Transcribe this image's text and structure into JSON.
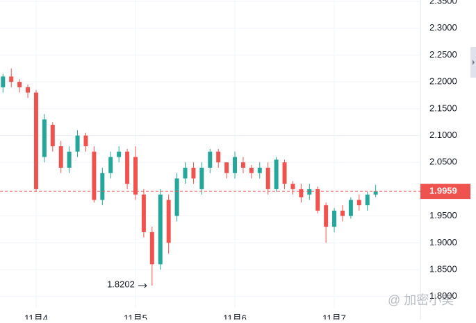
{
  "chart_data": {
    "type": "candlestick",
    "x": [
      -8,
      -6,
      -4,
      -2,
      0,
      2,
      4,
      6,
      8,
      10,
      12,
      14,
      16,
      18,
      20,
      22,
      24,
      26,
      28,
      30,
      32,
      34,
      36,
      38,
      40,
      42,
      44,
      46,
      48,
      50,
      52,
      54,
      56,
      58,
      60,
      62,
      64,
      66,
      68,
      70,
      72,
      74,
      76,
      78,
      80,
      82
    ],
    "open": [
      2.19,
      2.21,
      2.2,
      2.19,
      2.18,
      2.06,
      2.12,
      2.08,
      2.04,
      2.07,
      2.1,
      2.07,
      1.98,
      2.03,
      2.06,
      2.07,
      2.06,
      1.99,
      1.92,
      1.86,
      1.98,
      1.95,
      2.02,
      2.04,
      2.0,
      2.04,
      2.07,
      2.05,
      2.03,
      2.05,
      2.04,
      2.03,
      2.04,
      2.0,
      2.05,
      2.01,
      2.0,
      1.99,
      2.0,
      1.97,
      1.93,
      1.96,
      1.95,
      1.98,
      1.97,
      1.99
    ],
    "high": [
      2.215,
      2.225,
      2.205,
      2.195,
      2.185,
      2.14,
      2.125,
      2.09,
      2.08,
      2.11,
      2.105,
      2.08,
      2.04,
      2.07,
      2.08,
      2.075,
      2.08,
      2.0,
      1.93,
      2.0,
      1.99,
      2.03,
      2.05,
      2.05,
      2.05,
      2.075,
      2.075,
      2.05,
      2.07,
      2.06,
      2.045,
      2.05,
      2.05,
      2.06,
      2.055,
      2.015,
      2.01,
      2.01,
      2.005,
      1.975,
      1.965,
      1.97,
      1.985,
      1.99,
      1.995,
      2.008
    ],
    "low": [
      2.18,
      2.19,
      2.18,
      2.17,
      1.995,
      2.05,
      2.07,
      2.03,
      2.03,
      2.06,
      2.07,
      1.975,
      1.97,
      2.02,
      2.05,
      2.0,
      1.98,
      1.91,
      1.8202,
      1.85,
      1.88,
      1.94,
      2.01,
      2.01,
      1.99,
      2.03,
      2.04,
      2.02,
      2.02,
      2.03,
      2.02,
      2.02,
      1.99,
      1.995,
      2.0,
      1.99,
      1.975,
      1.98,
      1.955,
      1.9,
      1.92,
      1.94,
      1.945,
      1.96,
      1.96,
      1.985
    ],
    "close": [
      2.21,
      2.2,
      2.19,
      2.18,
      2.0,
      2.13,
      2.08,
      2.04,
      2.07,
      2.1,
      2.08,
      1.98,
      2.03,
      2.06,
      2.07,
      2.01,
      1.99,
      1.92,
      1.86,
      1.99,
      1.9,
      2.02,
      2.04,
      2.02,
      2.04,
      2.07,
      2.05,
      2.03,
      2.06,
      2.04,
      2.03,
      2.04,
      2.0,
      2.055,
      2.01,
      2.0,
      1.985,
      2.0,
      1.96,
      1.93,
      1.96,
      1.95,
      1.98,
      1.97,
      1.99,
      1.9959
    ],
    "up_color": "#26a69a",
    "down_color": "#ef5350",
    "xlim": [
      -8.72,
      92.8
    ],
    "xticks": [
      {
        "value": 0,
        "label": "11月4"
      },
      {
        "value": 24,
        "label": "11月5"
      },
      {
        "value": 48,
        "label": "11月6"
      },
      {
        "value": 72,
        "label": "11月7"
      }
    ],
    "ylim": [
      1.7777,
      2.3526
    ],
    "yticks": [
      {
        "value": 1.8,
        "label": "1.8000"
      },
      {
        "value": 1.85,
        "label": "1.8500"
      },
      {
        "value": 1.9,
        "label": "1.9000"
      },
      {
        "value": 1.95,
        "label": "1.9500"
      },
      {
        "value": 2.05,
        "label": "2.0500"
      },
      {
        "value": 2.1,
        "label": "2.1000"
      },
      {
        "value": 2.15,
        "label": "2.1500"
      },
      {
        "value": 2.2,
        "label": "2.2000"
      },
      {
        "value": 2.25,
        "label": "2.2500"
      },
      {
        "value": 2.3,
        "label": "2.3000"
      },
      {
        "value": 2.35,
        "label": "2.3500"
      }
    ],
    "grid": true,
    "last_price": 1.9959,
    "low_annotation": 1.8202,
    "watermark": "@ 加密小美"
  }
}
